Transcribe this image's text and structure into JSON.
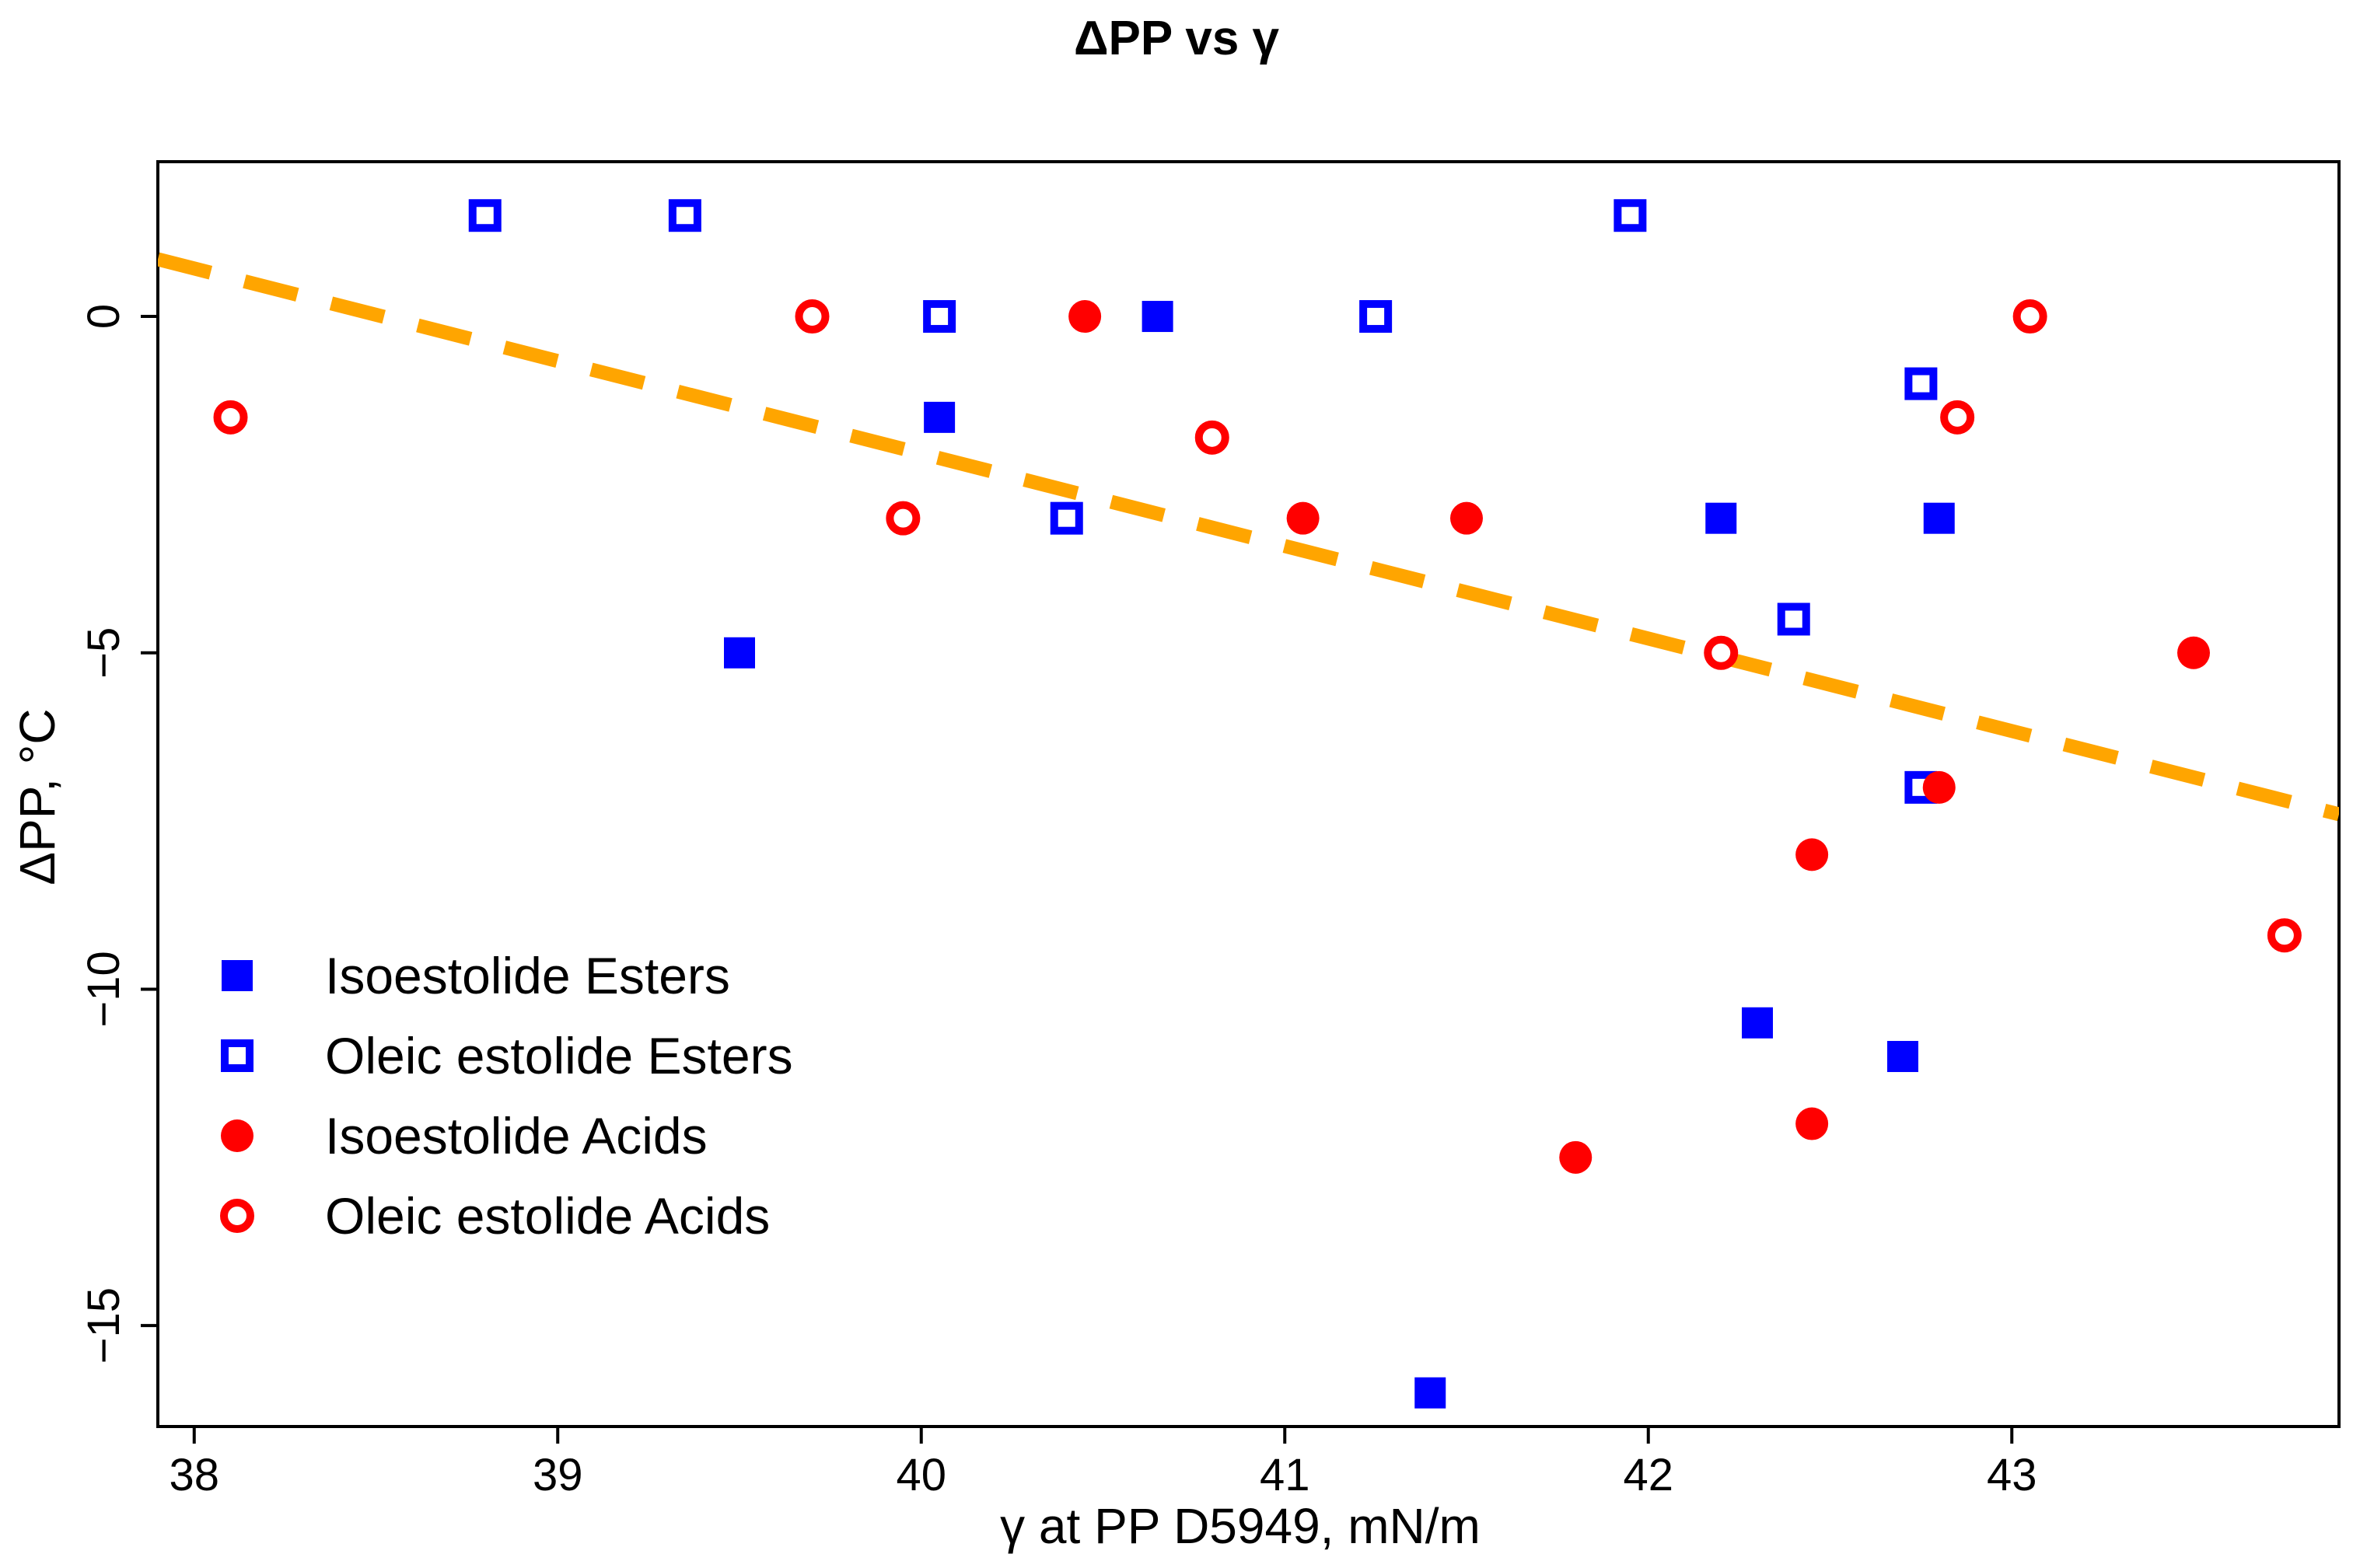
{
  "chart_data": {
    "type": "scatter",
    "title": "ΔPP vs γ",
    "xlabel": "γ at PP D5949, mN/m",
    "ylabel": "ΔPP, °C",
    "xlim": [
      37.9,
      43.9
    ],
    "ylim": [
      -16.5,
      2.3
    ],
    "x_ticks": [
      38,
      39,
      40,
      41,
      42,
      43
    ],
    "y_ticks": [
      0,
      -5,
      -10,
      -15
    ],
    "x_tick_labels": [
      "38",
      "39",
      "40",
      "41",
      "42",
      "43"
    ],
    "y_tick_labels": [
      "0",
      "−5",
      "−10",
      "−15"
    ],
    "grid": false,
    "legend_position": "bottom-left",
    "series": [
      {
        "name": "Isoestolide Esters",
        "marker": "filled-square",
        "color": "#0000ff",
        "points": [
          [
            39.5,
            -5
          ],
          [
            40.05,
            -1.5
          ],
          [
            40.65,
            0
          ],
          [
            41.4,
            -16
          ],
          [
            42.2,
            -3
          ],
          [
            42.3,
            -10.5
          ],
          [
            42.7,
            -11
          ],
          [
            42.8,
            -3
          ],
          [
            42.75,
            -7
          ]
        ]
      },
      {
        "name": "Oleic estolide Esters",
        "marker": "open-square",
        "color": "#0000ff",
        "points": [
          [
            38.8,
            1.5
          ],
          [
            39.35,
            1.5
          ],
          [
            40.05,
            0
          ],
          [
            40.4,
            -3
          ],
          [
            41.25,
            0
          ],
          [
            41.95,
            1.5
          ],
          [
            42.4,
            -4.5
          ],
          [
            42.75,
            -1
          ],
          [
            42.75,
            -7
          ]
        ]
      },
      {
        "name": "Isoestolide Acids",
        "marker": "filled-circle",
        "color": "#ff0000",
        "points": [
          [
            40.45,
            0
          ],
          [
            41.05,
            -3
          ],
          [
            41.5,
            -3
          ],
          [
            41.8,
            -12.5
          ],
          [
            42.45,
            -8
          ],
          [
            42.45,
            -12
          ],
          [
            42.8,
            -7
          ],
          [
            43.5,
            -5
          ]
        ]
      },
      {
        "name": "Oleic estolide Acids",
        "marker": "open-circle",
        "color": "#ff0000",
        "points": [
          [
            38.1,
            -1.5
          ],
          [
            39.7,
            0
          ],
          [
            39.95,
            -3
          ],
          [
            40.8,
            -1.8
          ],
          [
            42.2,
            -5
          ],
          [
            42.85,
            -1.5
          ],
          [
            43.05,
            0
          ],
          [
            43.75,
            -9.2
          ]
        ]
      }
    ],
    "trendline": {
      "style": "dashed",
      "color": "#ffa500",
      "x": [
        37.9,
        43.9
      ],
      "y": [
        0.85,
        -7.4
      ]
    }
  }
}
